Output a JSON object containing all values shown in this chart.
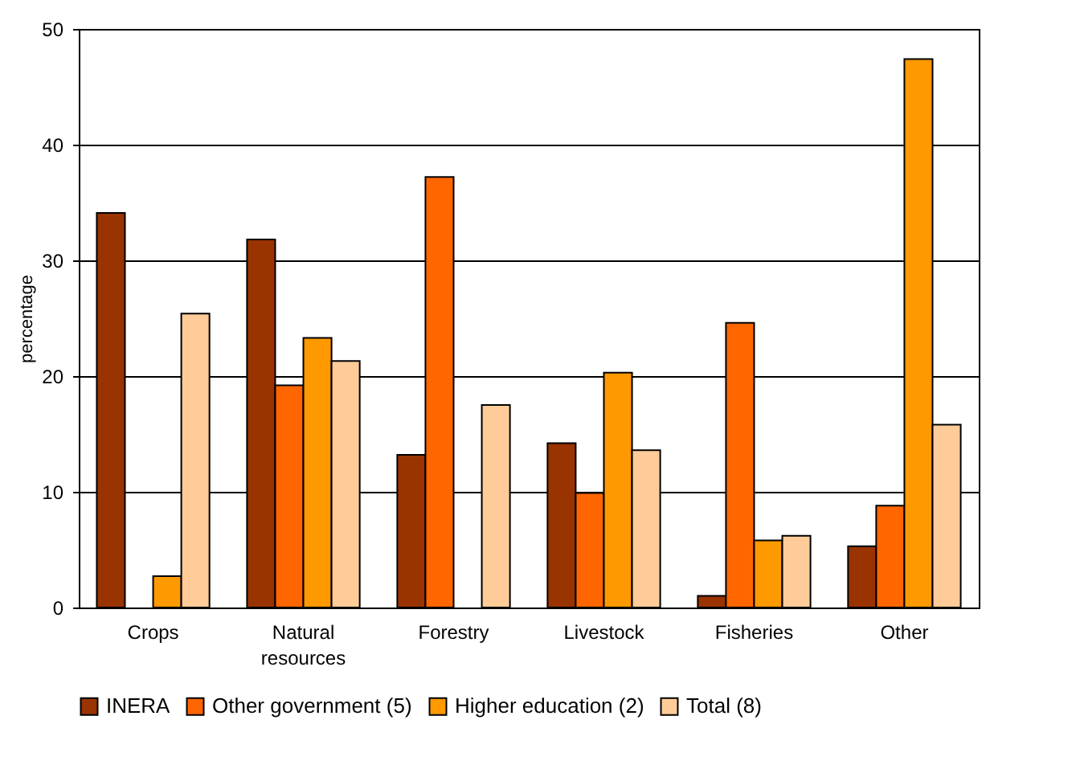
{
  "chart_data": {
    "type": "bar",
    "ylabel": "percentage",
    "categories": [
      "Crops",
      "Natural resources",
      "Forestry",
      "Livestock",
      "Fisheries",
      "Other"
    ],
    "series": [
      {
        "name": "INERA",
        "color": "#993300",
        "values": [
          34.1,
          31.8,
          13.2,
          14.2,
          1.0,
          5.3
        ]
      },
      {
        "name": "Other government (5)",
        "color": "#ff6600",
        "values": [
          null,
          19.2,
          37.2,
          9.9,
          24.6,
          8.8
        ]
      },
      {
        "name": "Higher education (2)",
        "color": "#ff9900",
        "values": [
          2.7,
          23.3,
          null,
          20.3,
          5.8,
          47.4
        ]
      },
      {
        "name": "Total (8)",
        "color": "#ffcc99",
        "values": [
          25.4,
          21.3,
          17.5,
          13.6,
          6.2,
          15.8
        ]
      }
    ],
    "ylim": [
      0,
      50
    ],
    "yticks": [
      0,
      10,
      20,
      30,
      40,
      50
    ],
    "grid": "y",
    "legend": "bottom"
  }
}
